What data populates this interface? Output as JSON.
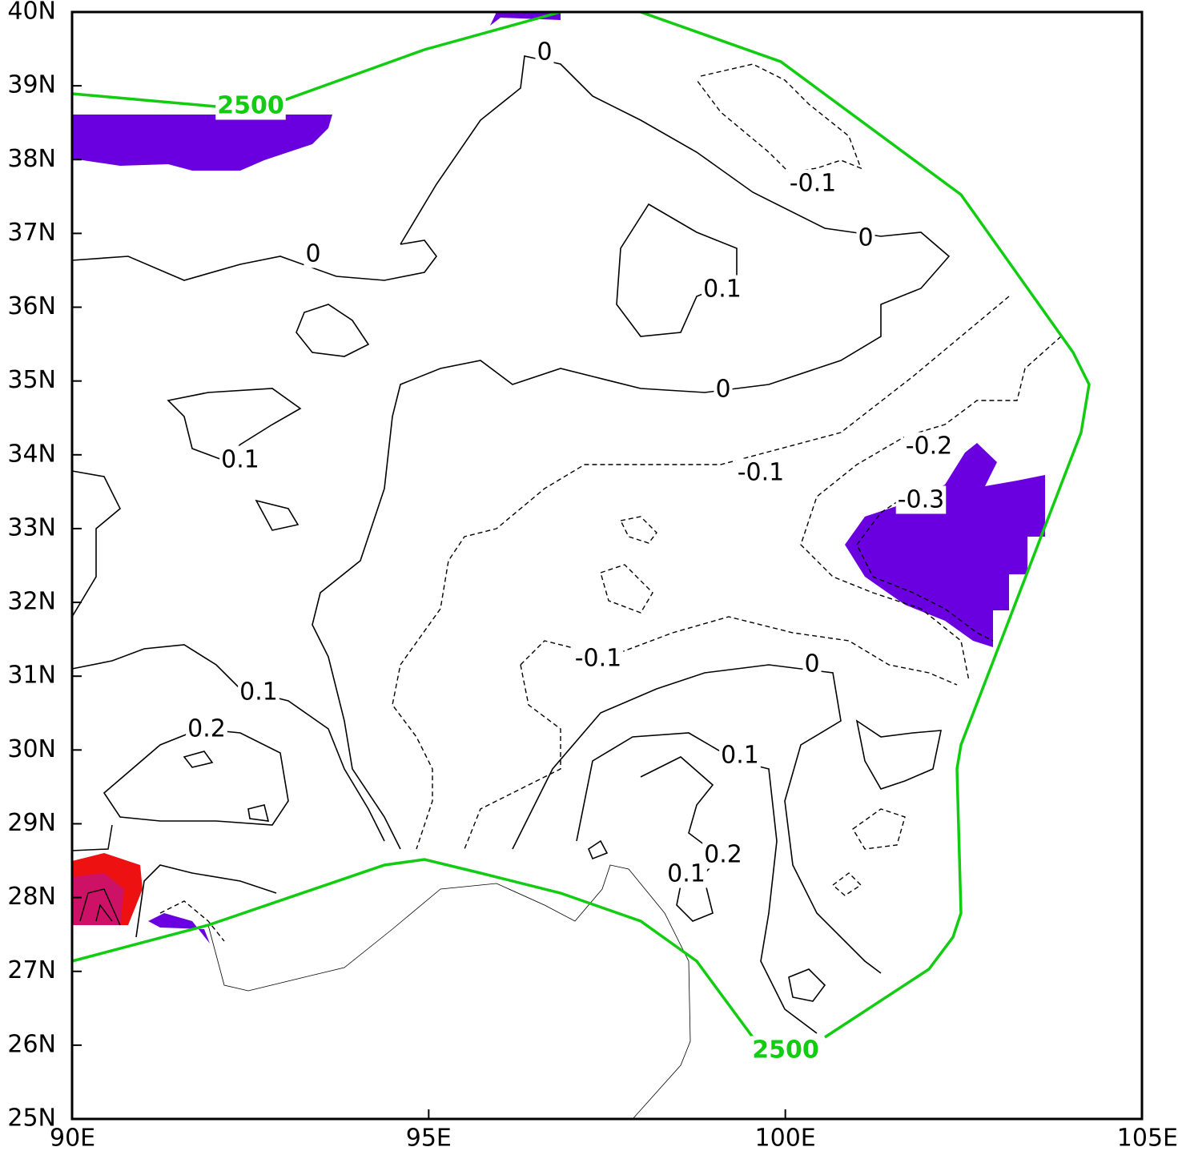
{
  "map": {
    "xlim": [
      90,
      105
    ],
    "ylim": [
      25,
      40
    ],
    "xticks": [
      {
        "value": 90,
        "label": "90E"
      },
      {
        "value": 95,
        "label": "95E"
      },
      {
        "value": 100,
        "label": "100E"
      },
      {
        "value": 105,
        "label": "105E"
      }
    ],
    "yticks": [
      {
        "value": 25,
        "label": "25N"
      },
      {
        "value": 26,
        "label": "26N"
      },
      {
        "value": 27,
        "label": "27N"
      },
      {
        "value": 28,
        "label": "28N"
      },
      {
        "value": 29,
        "label": "29N"
      },
      {
        "value": 30,
        "label": "30N"
      },
      {
        "value": 31,
        "label": "31N"
      },
      {
        "value": 32,
        "label": "32N"
      },
      {
        "value": 33,
        "label": "33N"
      },
      {
        "value": 34,
        "label": "34N"
      },
      {
        "value": 35,
        "label": "35N"
      },
      {
        "value": 36,
        "label": "36N"
      },
      {
        "value": 37,
        "label": "37N"
      },
      {
        "value": 38,
        "label": "38N"
      },
      {
        "value": 39,
        "label": "39N"
      },
      {
        "value": 40,
        "label": "40N"
      }
    ],
    "contour_labels": [
      {
        "text": "0"
      },
      {
        "text": "-0.1"
      },
      {
        "text": "0"
      },
      {
        "text": "0"
      },
      {
        "text": "0.1"
      },
      {
        "text": "0"
      },
      {
        "text": "0.1"
      },
      {
        "text": "-0.2"
      },
      {
        "text": "-0.1"
      },
      {
        "text": "-0.3"
      },
      {
        "text": "-0.1"
      },
      {
        "text": "0"
      },
      {
        "text": "0.1"
      },
      {
        "text": "0.2"
      },
      {
        "text": "0.1"
      },
      {
        "text": "0.2"
      },
      {
        "text": "0.1"
      },
      {
        "text": "2500",
        "color": "#11cc11"
      },
      {
        "text": "2500",
        "color": "#11cc11"
      }
    ]
  }
}
